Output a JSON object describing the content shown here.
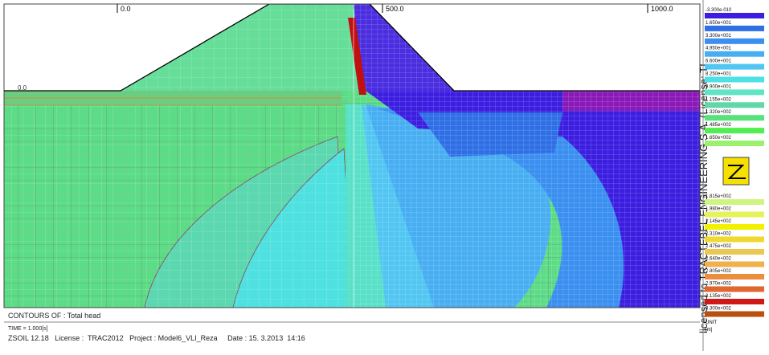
{
  "plot": {
    "x_ticks": [
      "0.0",
      "500.0",
      "1000.0"
    ],
    "y_tick": "0.0"
  },
  "footer": {
    "contours": "CONTOURS OF : Total head",
    "time": "TIME = 1.000[s]",
    "info": "ZSOIL 12.18   License :  TRAC2012   Project : Model6_VLI_Reza     Date : 15. 3.2013  14:16"
  },
  "watermark": "licensed to TRACTEBEL ENGINEERING S.A. (License: TI",
  "legend": {
    "items": [
      {
        "label": "-3.300e-010",
        "color": "#3c1ee0"
      },
      {
        "label": "1.650e+001",
        "color": "#2f6fe6"
      },
      {
        "label": "3.300e+001",
        "color": "#3a8ff0"
      },
      {
        "label": "4.950e+001",
        "color": "#48aef2"
      },
      {
        "label": "6.600e+001",
        "color": "#52c6f2"
      },
      {
        "label": "8.250e+001",
        "color": "#4ee0e6"
      },
      {
        "label": "9.900e+001",
        "color": "#5ee6c4"
      },
      {
        "label": "1.155e+002",
        "color": "#5ed8a6"
      },
      {
        "label": "1.320e+002",
        "color": "#58e27a"
      },
      {
        "label": "1.485e+002",
        "color": "#50ee50"
      },
      {
        "label": "1.650e+002",
        "color": "#9cf070"
      },
      {
        "label": "1.815e+002",
        "color": "#d0f480"
      },
      {
        "label": "1.980e+002",
        "color": "#e6f25a"
      },
      {
        "label": "2.145e+002",
        "color": "#f2f200"
      },
      {
        "label": "2.310e+002",
        "color": "#f0d830"
      },
      {
        "label": "2.475e+002",
        "color": "#ecc850"
      },
      {
        "label": "2.640e+002",
        "color": "#f0b04c"
      },
      {
        "label": "2.805e+002",
        "color": "#ec8c3c"
      },
      {
        "label": "2.970e+002",
        "color": "#e06830"
      },
      {
        "label": "3.135e+002",
        "color": "#d01818"
      },
      {
        "label": "3.300e+002",
        "color": "#b85010"
      }
    ],
    "unit": "UNIT",
    "unit_value": "[m]"
  }
}
